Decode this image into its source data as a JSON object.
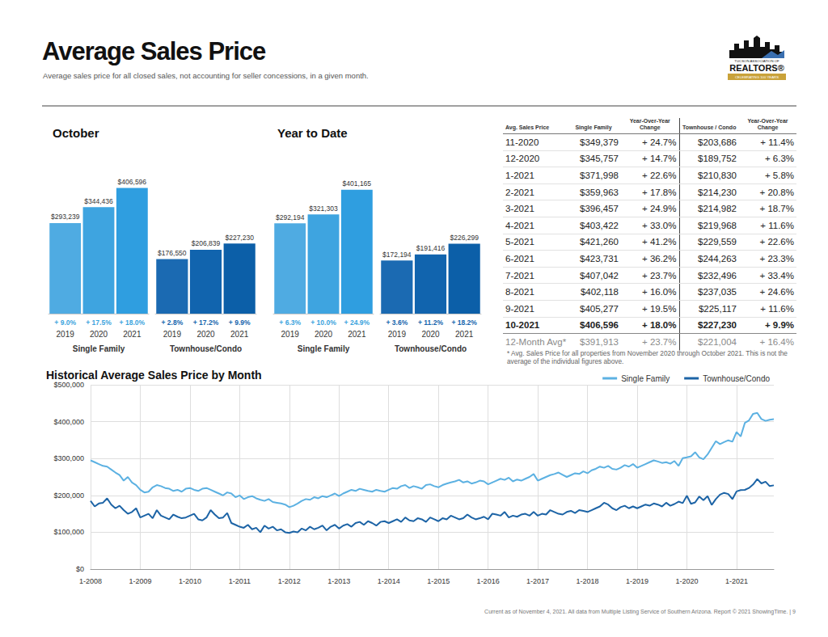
{
  "header": {
    "title": "Average Sales Price",
    "subtitle": "Average sales price for all closed sales, not accounting for seller concessions, in a given month."
  },
  "logo": {
    "lines": [
      "TUCSON ASSOCIATION OF",
      "REALTORS®",
      "CELEBRATING 100 YEARS"
    ]
  },
  "chart_data": [
    {
      "type": "bar",
      "title": "October",
      "ylim": [
        0,
        450000
      ],
      "tick_labels": false,
      "data_labels": true,
      "grid": false,
      "series": [
        {
          "name": "Single Family",
          "color": "#3ba3dd",
          "categories": [
            "2019",
            "2020",
            "2021"
          ],
          "values": [
            293239,
            344436,
            406596
          ],
          "value_labels": [
            "$293,239",
            "$344,436",
            "$406,596"
          ],
          "changes": [
            "+ 9.0%",
            "+ 17.5%",
            "+ 18.0%"
          ],
          "colors": [
            "#4fabe2",
            "#3ea4e0",
            "#2f9ee0"
          ]
        },
        {
          "name": "Townhouse/Condo",
          "color": "#1565ad",
          "categories": [
            "2019",
            "2020",
            "2021"
          ],
          "values": [
            176550,
            206839,
            227230
          ],
          "value_labels": [
            "$176,550",
            "$206,839",
            "$227,230"
          ],
          "changes": [
            "+ 2.8%",
            "+ 17.2%",
            "+ 9.9%"
          ],
          "colors": [
            "#1b6ab2",
            "#1164ae",
            "#0c5fa8"
          ]
        }
      ]
    },
    {
      "type": "bar",
      "title": "Year to Date",
      "ylim": [
        0,
        450000
      ],
      "tick_labels": false,
      "data_labels": true,
      "grid": false,
      "series": [
        {
          "name": "Single Family",
          "color": "#3ba3dd",
          "categories": [
            "2019",
            "2020",
            "2021"
          ],
          "values": [
            292194,
            321303,
            401165
          ],
          "value_labels": [
            "$292,194",
            "$321,303",
            "$401,165"
          ],
          "changes": [
            "+ 6.3%",
            "+ 10.0%",
            "+ 24.9%"
          ],
          "colors": [
            "#4fabe2",
            "#3ea4e0",
            "#2f9ee0"
          ]
        },
        {
          "name": "Townhouse/Condo",
          "color": "#1565ad",
          "categories": [
            "2019",
            "2020",
            "2021"
          ],
          "values": [
            172194,
            191416,
            226299
          ],
          "value_labels": [
            "$172,194",
            "$191,416",
            "$226,299"
          ],
          "changes": [
            "+ 3.6%",
            "+ 11.2%",
            "+ 18.2%"
          ],
          "colors": [
            "#1b6ab2",
            "#1164ae",
            "#0c5fa8"
          ]
        }
      ]
    },
    {
      "type": "line",
      "title": "Historical Average Sales Price by Month",
      "grid": true,
      "legend": "top-right",
      "ylim": [
        0,
        500000
      ],
      "yticks": [
        {
          "value": 0,
          "label": "$0"
        },
        {
          "value": 100000,
          "label": "$100,000"
        },
        {
          "value": 200000,
          "label": "$200,000"
        },
        {
          "value": 300000,
          "label": "$300,000"
        },
        {
          "value": 400000,
          "label": "$400,000"
        },
        {
          "value": 500000,
          "label": "$500,000"
        }
      ],
      "categories": [
        "1-2008",
        null,
        null,
        null,
        null,
        null,
        null,
        null,
        null,
        null,
        null,
        null,
        "1-2009",
        null,
        null,
        null,
        null,
        null,
        null,
        null,
        null,
        null,
        null,
        null,
        "1-2010",
        null,
        null,
        null,
        null,
        null,
        null,
        null,
        null,
        null,
        null,
        null,
        "1-2011",
        null,
        null,
        null,
        null,
        null,
        null,
        null,
        null,
        null,
        null,
        null,
        "1-2012",
        null,
        null,
        null,
        null,
        null,
        null,
        null,
        null,
        null,
        null,
        null,
        "1-2013",
        null,
        null,
        null,
        null,
        null,
        null,
        null,
        null,
        null,
        null,
        null,
        "1-2014",
        null,
        null,
        null,
        null,
        null,
        null,
        null,
        null,
        null,
        null,
        null,
        "1-2015",
        null,
        null,
        null,
        null,
        null,
        null,
        null,
        null,
        null,
        null,
        null,
        "1-2016",
        null,
        null,
        null,
        null,
        null,
        null,
        null,
        null,
        null,
        null,
        null,
        "1-2017",
        null,
        null,
        null,
        null,
        null,
        null,
        null,
        null,
        null,
        null,
        null,
        "1-2018",
        null,
        null,
        null,
        null,
        null,
        null,
        null,
        null,
        null,
        null,
        null,
        "1-2019",
        null,
        null,
        null,
        null,
        null,
        null,
        null,
        null,
        null,
        null,
        null,
        "1-2020",
        null,
        null,
        null,
        null,
        null,
        null,
        null,
        null,
        null,
        null,
        null,
        "1-2021",
        null,
        null,
        null,
        null,
        null,
        null,
        null,
        null,
        null
      ],
      "series": [
        {
          "name": "Single Family",
          "color": "#5cb1e2",
          "values": [
            295000,
            290000,
            285000,
            280000,
            278000,
            270000,
            262000,
            255000,
            240000,
            250000,
            235000,
            228000,
            215000,
            208000,
            210000,
            222000,
            228000,
            225000,
            220000,
            218000,
            212000,
            215000,
            210000,
            218000,
            220000,
            215000,
            212000,
            218000,
            220000,
            215000,
            210000,
            205000,
            200000,
            208000,
            205000,
            195000,
            200000,
            190000,
            195000,
            198000,
            192000,
            188000,
            185000,
            190000,
            182000,
            180000,
            178000,
            175000,
            168000,
            172000,
            178000,
            185000,
            190000,
            188000,
            195000,
            192000,
            198000,
            195000,
            200000,
            205000,
            198000,
            205000,
            210000,
            215000,
            212000,
            218000,
            215000,
            212000,
            210000,
            215000,
            212000,
            210000,
            215000,
            220000,
            218000,
            225000,
            228000,
            220000,
            225000,
            222000,
            218000,
            228000,
            230000,
            225000,
            222000,
            228000,
            232000,
            235000,
            238000,
            242000,
            235000,
            238000,
            232000,
            235000,
            240000,
            238000,
            230000,
            235000,
            240000,
            245000,
            242000,
            248000,
            238000,
            243000,
            240000,
            245000,
            250000,
            258000,
            240000,
            245000,
            250000,
            255000,
            258000,
            262000,
            256000,
            250000,
            255000,
            260000,
            258000,
            265000,
            260000,
            268000,
            272000,
            278000,
            275000,
            280000,
            272000,
            270000,
            275000,
            282000,
            278000,
            285000,
            275000,
            280000,
            285000,
            290000,
            295000,
            292000,
            288000,
            290000,
            286000,
            293239,
            280000,
            301000,
            303000,
            306000,
            317000,
            303000,
            298000,
            311000,
            329000,
            347000,
            339000,
            344436,
            349379,
            345757,
            371998,
            359963,
            396457,
            403422,
            421260,
            423731,
            407042,
            402118,
            405277,
            406596
          ]
        },
        {
          "name": "Townhouse/Condo",
          "color": "#1d64a6",
          "values": [
            185000,
            170000,
            178000,
            180000,
            192000,
            175000,
            165000,
            172000,
            160000,
            150000,
            155000,
            165000,
            140000,
            145000,
            150000,
            138000,
            160000,
            145000,
            140000,
            135000,
            148000,
            142000,
            138000,
            140000,
            145000,
            150000,
            135000,
            132000,
            140000,
            160000,
            148000,
            138000,
            140000,
            152000,
            125000,
            120000,
            115000,
            112000,
            120000,
            108000,
            112000,
            100000,
            118000,
            110000,
            115000,
            105000,
            108000,
            100000,
            98000,
            102000,
            100000,
            110000,
            105000,
            115000,
            108000,
            112000,
            118000,
            105000,
            115000,
            120000,
            110000,
            118000,
            122000,
            115000,
            125000,
            128000,
            120000,
            130000,
            125000,
            118000,
            128000,
            130000,
            125000,
            130000,
            135000,
            128000,
            140000,
            132000,
            130000,
            138000,
            135000,
            128000,
            140000,
            135000,
            130000,
            138000,
            135000,
            145000,
            140000,
            135000,
            138000,
            148000,
            140000,
            135000,
            138000,
            142000,
            135000,
            150000,
            148000,
            145000,
            155000,
            140000,
            145000,
            142000,
            148000,
            150000,
            145000,
            155000,
            145000,
            150000,
            148000,
            160000,
            155000,
            150000,
            148000,
            155000,
            158000,
            152000,
            160000,
            158000,
            155000,
            160000,
            165000,
            170000,
            180000,
            175000,
            165000,
            160000,
            168000,
            172000,
            165000,
            170000,
            165000,
            170000,
            175000,
            172000,
            178000,
            175000,
            170000,
            180000,
            172000,
            176550,
            183000,
            179000,
            199000,
            177000,
            181000,
            197000,
            187000,
            198000,
            174000,
            190000,
            202000,
            206839,
            203686,
            189752,
            210830,
            214230,
            214982,
            219968,
            229559,
            244263,
            232496,
            237035,
            225117,
            227230
          ]
        }
      ]
    }
  ],
  "table": {
    "columns": [
      "Avg. Sales Price",
      "Single Family",
      "Year-Over-Year Change",
      "Townhouse / Condo",
      "Year-Over-Year Change"
    ],
    "rows": [
      [
        "11-2020",
        "$349,379",
        "+ 24.7%",
        "$203,686",
        "+ 11.4%"
      ],
      [
        "12-2020",
        "$345,757",
        "+ 14.7%",
        "$189,752",
        "+ 6.3%"
      ],
      [
        "1-2021",
        "$371,998",
        "+ 22.6%",
        "$210,830",
        "+ 5.8%"
      ],
      [
        "2-2021",
        "$359,963",
        "+ 17.8%",
        "$214,230",
        "+ 20.8%"
      ],
      [
        "3-2021",
        "$396,457",
        "+ 24.9%",
        "$214,982",
        "+ 18.7%"
      ],
      [
        "4-2021",
        "$403,422",
        "+ 33.0%",
        "$219,968",
        "+ 11.6%"
      ],
      [
        "5-2021",
        "$421,260",
        "+ 41.2%",
        "$229,559",
        "+ 22.6%"
      ],
      [
        "6-2021",
        "$423,731",
        "+ 36.2%",
        "$244,263",
        "+ 23.3%"
      ],
      [
        "7-2021",
        "$407,042",
        "+ 23.7%",
        "$232,496",
        "+ 33.4%"
      ],
      [
        "8-2021",
        "$402,118",
        "+ 16.0%",
        "$237,035",
        "+ 24.6%"
      ],
      [
        "9-2021",
        "$405,277",
        "+ 19.5%",
        "$225,117",
        "+ 11.6%"
      ],
      [
        "10-2021",
        "$406,596",
        "+ 18.0%",
        "$227,230",
        "+ 9.9%"
      ]
    ],
    "summary": [
      "12-Month Avg*",
      "$391,913",
      "+ 23.7%",
      "$221,004",
      "+ 16.4%"
    ],
    "footnote": "* Avg. Sales Price for all properties from November 2020 through October 2021. This is not the average of the individual figures above."
  },
  "footer": "Current as of November 4, 2021. All data from Multiple Listing Service of Southern Arizona. Report © 2021 ShowingTime. | 9"
}
